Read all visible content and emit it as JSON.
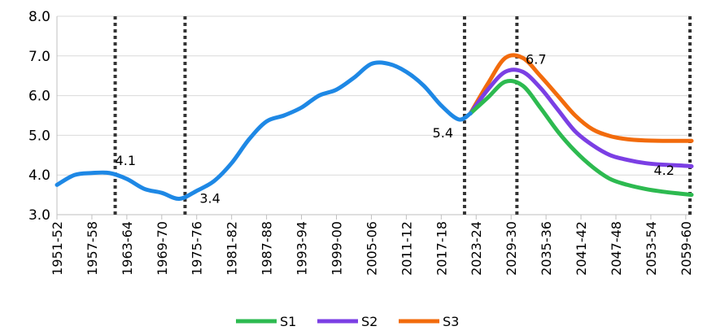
{
  "chart_data": {
    "type": "line",
    "title": "",
    "xlabel": "",
    "ylabel": "",
    "ylim": [
      3.0,
      8.0
    ],
    "y_ticks": [
      "3.0",
      "4.0",
      "5.0",
      "6.0",
      "7.0",
      "8.0"
    ],
    "x_tick_labels": [
      "1951-52",
      "1957-58",
      "1963-64",
      "1969-70",
      "1975-76",
      "1981-82",
      "1987-88",
      "1993-94",
      "1999-00",
      "2005-06",
      "2011-12",
      "2017-18",
      "2023-24",
      "2029-30",
      "2035-36",
      "2041-42",
      "2047-48",
      "2053-54",
      "2059-60"
    ],
    "x_years": [
      1951,
      1957,
      1963,
      1969,
      1975,
      1981,
      1987,
      1993,
      1999,
      2005,
      2011,
      2017,
      2023,
      2029,
      2035,
      2041,
      2047,
      2053,
      2059
    ],
    "historical": {
      "color": "#1e88e5",
      "x": [
        1951,
        1954,
        1957,
        1960,
        1963,
        1966,
        1969,
        1972,
        1975,
        1978,
        1981,
        1984,
        1987,
        1990,
        1993,
        1996,
        1999,
        2002,
        2005,
        2008,
        2011,
        2014,
        2017,
        2020,
        2022
      ],
      "y": [
        3.75,
        4.0,
        4.05,
        4.05,
        3.9,
        3.65,
        3.55,
        3.4,
        3.6,
        3.85,
        4.3,
        4.9,
        5.35,
        5.5,
        5.7,
        6.0,
        6.15,
        6.45,
        6.8,
        6.8,
        6.6,
        6.25,
        5.75,
        5.4,
        5.55
      ]
    },
    "series": [
      {
        "name": "S1",
        "color": "#2dba50",
        "x": [
          2022,
          2025,
          2028,
          2031,
          2034,
          2037,
          2040,
          2043,
          2046,
          2049,
          2052,
          2055,
          2058,
          2060
        ],
        "y": [
          5.55,
          5.95,
          6.35,
          6.25,
          5.7,
          5.1,
          4.6,
          4.2,
          3.9,
          3.75,
          3.65,
          3.58,
          3.53,
          3.5
        ]
      },
      {
        "name": "S2",
        "color": "#7b3fe4",
        "x": [
          2022,
          2025,
          2028,
          2031,
          2034,
          2037,
          2040,
          2043,
          2046,
          2049,
          2052,
          2055,
          2058,
          2060
        ],
        "y": [
          5.55,
          6.15,
          6.6,
          6.6,
          6.2,
          5.65,
          5.1,
          4.75,
          4.5,
          4.38,
          4.3,
          4.26,
          4.24,
          4.22
        ]
      },
      {
        "name": "S3",
        "color": "#f26b0c",
        "x": [
          2022,
          2025,
          2028,
          2031,
          2034,
          2037,
          2040,
          2043,
          2046,
          2049,
          2052,
          2055,
          2058,
          2060
        ],
        "y": [
          5.55,
          6.3,
          6.95,
          6.95,
          6.5,
          6.0,
          5.5,
          5.15,
          4.98,
          4.9,
          4.87,
          4.86,
          4.86,
          4.86
        ]
      }
    ],
    "vertical_markers": [
      1961,
      1973,
      2021,
      2030,
      2060
    ],
    "annotations": [
      {
        "text": "4.1",
        "x": 1961,
        "y": 4.25,
        "anchor": "start"
      },
      {
        "text": "3.4",
        "x": 1975.5,
        "y": 3.3,
        "anchor": "start"
      },
      {
        "text": "5.4",
        "x": 2015.5,
        "y": 4.95,
        "anchor": "start"
      },
      {
        "text": "6.7",
        "x": 2031.5,
        "y": 6.8,
        "anchor": "start"
      },
      {
        "text": "4.2",
        "x": 2053.5,
        "y": 4.0,
        "anchor": "start"
      }
    ],
    "legend": {
      "placement": "bottom-center",
      "items": [
        {
          "name": "S1",
          "color": "#2dba50"
        },
        {
          "name": "S2",
          "color": "#7b3fe4"
        },
        {
          "name": "S3",
          "color": "#f26b0c"
        }
      ]
    },
    "grid": true,
    "grid_color": "#d9d9d9",
    "marker_color": "#333333"
  }
}
